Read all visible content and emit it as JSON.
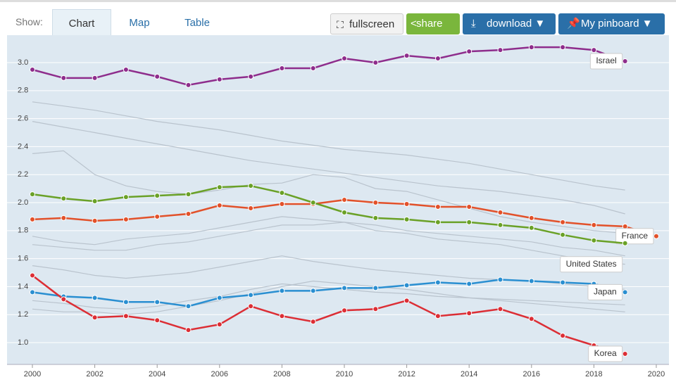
{
  "toolbar": {
    "show_label": "Show:",
    "tabs": [
      "Chart",
      "Map",
      "Table"
    ],
    "buttons": [
      "fullscreen",
      "share",
      "download ▼",
      "My pinboard ▼"
    ]
  },
  "chart_data": {
    "type": "line",
    "x": [
      2000,
      2001,
      2002,
      2003,
      2004,
      2005,
      2006,
      2007,
      2008,
      2009,
      2010,
      2011,
      2012,
      2013,
      2014,
      2015,
      2016,
      2017,
      2018,
      2019,
      2020
    ],
    "xlim": [
      2000,
      2020
    ],
    "xticks": [
      2000,
      2002,
      2004,
      2006,
      2008,
      2010,
      2012,
      2014,
      2016,
      2018,
      2020
    ],
    "ylim": [
      0.85,
      3.17
    ],
    "yticks": [
      {
        "value": 1,
        "label": "1.0"
      },
      1.2,
      1.4,
      1.6,
      1.8,
      {
        "value": 2,
        "label": "2.0"
      },
      2.2,
      2.4,
      2.6,
      2.8,
      {
        "value": 3,
        "label": "3.0"
      }
    ],
    "grid": true,
    "background_series": [
      {
        "color": "#b9c3cd",
        "values": [
          2.72,
          2.69,
          2.66,
          2.62,
          2.58,
          2.55,
          2.52,
          2.48,
          2.44,
          2.41,
          2.38,
          2.36,
          2.34,
          2.31,
          2.28,
          2.24,
          2.2,
          2.16,
          2.12,
          2.09,
          null
        ]
      },
      {
        "color": "#b9c3cd",
        "values": [
          2.58,
          2.54,
          2.5,
          2.46,
          2.42,
          2.38,
          2.34,
          2.3,
          2.27,
          2.24,
          2.21,
          2.18,
          2.15,
          2.12,
          2.1,
          2.08,
          2.05,
          2.02,
          1.98,
          1.92,
          null
        ]
      },
      {
        "color": "#b9c3cd",
        "values": [
          2.35,
          2.37,
          2.2,
          2.12,
          2.08,
          2.06,
          2.09,
          2.13,
          2.14,
          2.2,
          2.18,
          2.1,
          2.08,
          2.02,
          1.96,
          1.9,
          1.86,
          1.83,
          1.8,
          1.78,
          null
        ]
      },
      {
        "color": "#b9c3cd",
        "values": [
          1.76,
          1.72,
          1.7,
          1.74,
          1.76,
          1.78,
          1.82,
          1.86,
          1.9,
          1.88,
          1.86,
          1.84,
          1.8,
          1.78,
          1.76,
          1.74,
          1.72,
          1.68,
          1.66,
          1.62,
          null
        ]
      },
      {
        "color": "#b9c3cd",
        "values": [
          1.7,
          1.68,
          1.66,
          1.66,
          1.7,
          1.72,
          1.76,
          1.8,
          1.84,
          1.84,
          1.86,
          1.8,
          1.78,
          1.74,
          1.72,
          1.7,
          1.66,
          1.62,
          1.58,
          1.56,
          null
        ]
      },
      {
        "color": "#b9c3cd",
        "values": [
          1.55,
          1.52,
          1.48,
          1.46,
          1.48,
          1.5,
          1.54,
          1.58,
          1.62,
          1.58,
          1.55,
          1.52,
          1.5,
          1.48,
          1.46,
          1.45,
          1.44,
          1.42,
          1.4,
          1.38,
          null
        ]
      },
      {
        "color": "#b9c3cd",
        "values": [
          1.3,
          1.28,
          1.25,
          1.24,
          1.26,
          1.3,
          1.33,
          1.38,
          1.42,
          1.4,
          1.38,
          1.36,
          1.35,
          1.33,
          1.32,
          1.31,
          1.3,
          1.29,
          1.28,
          1.27,
          null
        ]
      },
      {
        "color": "#b9c3cd",
        "values": [
          1.24,
          1.22,
          1.22,
          1.2,
          1.22,
          1.26,
          1.3,
          1.35,
          1.4,
          1.44,
          1.42,
          1.4,
          1.38,
          1.35,
          1.32,
          1.3,
          1.28,
          1.26,
          1.24,
          1.22,
          null
        ]
      }
    ],
    "series": [
      {
        "name": "Israel",
        "color": "#8e2d8c",
        "values": [
          2.95,
          2.89,
          2.89,
          2.95,
          2.9,
          2.84,
          2.88,
          2.9,
          2.96,
          2.96,
          3.03,
          3.0,
          3.05,
          3.03,
          3.08,
          3.09,
          3.11,
          3.11,
          3.09,
          3.01,
          null
        ]
      },
      {
        "name": "France",
        "color": "#e2512a",
        "values": [
          1.88,
          1.89,
          1.87,
          1.88,
          1.9,
          1.92,
          1.98,
          1.96,
          1.99,
          1.99,
          2.02,
          2.0,
          1.99,
          1.97,
          1.97,
          1.93,
          1.89,
          1.86,
          1.84,
          1.83,
          1.76
        ]
      },
      {
        "name": "United States",
        "color": "#6aa127",
        "values": [
          2.06,
          2.03,
          2.01,
          2.04,
          2.05,
          2.06,
          2.11,
          2.12,
          2.07,
          2.0,
          1.93,
          1.89,
          1.88,
          1.86,
          1.86,
          1.84,
          1.82,
          1.77,
          1.73,
          1.71,
          null
        ]
      },
      {
        "name": "Japan",
        "color": "#2a8fd1",
        "values": [
          1.36,
          1.33,
          1.32,
          1.29,
          1.29,
          1.26,
          1.32,
          1.34,
          1.37,
          1.37,
          1.39,
          1.39,
          1.41,
          1.43,
          1.42,
          1.45,
          1.44,
          1.43,
          1.42,
          1.36,
          null
        ]
      },
      {
        "name": "Korea",
        "color": "#dc2e35",
        "values": [
          1.48,
          1.31,
          1.18,
          1.19,
          1.16,
          1.09,
          1.13,
          1.26,
          1.19,
          1.15,
          1.23,
          1.24,
          1.3,
          1.19,
          1.21,
          1.24,
          1.17,
          1.05,
          0.98,
          0.92,
          null
        ]
      }
    ]
  }
}
